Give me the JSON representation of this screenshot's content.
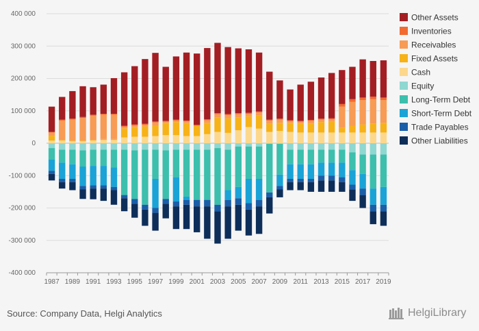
{
  "source_text": "Source: Company Data, Helgi Analytics",
  "logo_text": "HelgiLibrary",
  "chart_data": {
    "type": "bar",
    "stacked": true,
    "title": "",
    "xlabel": "",
    "ylabel": "",
    "ylim": [
      -400000,
      400000
    ],
    "y_ticks": [
      400000,
      300000,
      200000,
      100000,
      0,
      -100000,
      -200000,
      -300000,
      -400000
    ],
    "y_tick_labels": [
      "400 000",
      "300 000",
      "200 000",
      "100 000",
      "0",
      "-100 000",
      "-200 000",
      "-300 000",
      "-400 000"
    ],
    "grid": "horizontal",
    "legend_position": "right",
    "categories": [
      1987,
      1988,
      1989,
      1990,
      1991,
      1992,
      1993,
      1994,
      1995,
      1996,
      1997,
      1998,
      1999,
      2000,
      2001,
      2002,
      2003,
      2004,
      2005,
      2006,
      2007,
      2008,
      2009,
      2010,
      2011,
      2012,
      2013,
      2014,
      2015,
      2016,
      2017,
      2018,
      2019
    ],
    "x_tick_labels": [
      "1987",
      "1989",
      "1991",
      "1993",
      "1995",
      "1997",
      "1999",
      "2001",
      "2003",
      "2005",
      "2007",
      "2009",
      "2011",
      "2013",
      "2015",
      "2017",
      "2019"
    ],
    "assets": [
      {
        "name": "Cash",
        "color": "#fdd88c",
        "values": [
          8000,
          8000,
          6000,
          6000,
          8000,
          10000,
          10000,
          18000,
          20000,
          20000,
          22000,
          25000,
          25000,
          22000,
          22000,
          28000,
          35000,
          32000,
          40000,
          50000,
          45000,
          35000,
          38000,
          35000,
          33000,
          33000,
          33000,
          33000,
          33000,
          33000,
          33000,
          33000,
          33000
        ]
      },
      {
        "name": "Fixed Assets",
        "color": "#f7b218",
        "values": [
          15000,
          2000,
          2000,
          2000,
          2000,
          3000,
          3000,
          28000,
          30000,
          32000,
          32000,
          38000,
          40000,
          40000,
          32000,
          35000,
          45000,
          45000,
          40000,
          33000,
          40000,
          25000,
          25000,
          28000,
          28000,
          28000,
          32000,
          33000,
          15000,
          20000,
          25000,
          28000,
          30000
        ]
      },
      {
        "name": "Receivables",
        "color": "#f89b54",
        "values": [
          10000,
          60000,
          65000,
          70000,
          75000,
          75000,
          75000,
          5000,
          5000,
          5000,
          10000,
          3000,
          5000,
          5000,
          0,
          8000,
          10000,
          10000,
          10000,
          8000,
          10000,
          10000,
          10000,
          5000,
          5000,
          8000,
          8000,
          8000,
          65000,
          75000,
          75000,
          75000,
          70000
        ]
      },
      {
        "name": "Inventories",
        "color": "#f26a30",
        "values": [
          2000,
          3000,
          3000,
          3000,
          3000,
          3000,
          3000,
          3000,
          3000,
          3000,
          3000,
          3000,
          3000,
          3000,
          3000,
          3000,
          3000,
          3000,
          3000,
          3000,
          3000,
          3000,
          3000,
          3000,
          3000,
          3000,
          3000,
          3000,
          8000,
          8000,
          8000,
          8000,
          8000
        ]
      },
      {
        "name": "Other Assets",
        "color": "#a31e23",
        "values": [
          78000,
          70000,
          85000,
          95000,
          85000,
          90000,
          110000,
          165000,
          180000,
          200000,
          212000,
          167000,
          195000,
          210000,
          220000,
          220000,
          217000,
          207000,
          200000,
          196000,
          182000,
          148000,
          118000,
          95000,
          112000,
          118000,
          127000,
          140000,
          105000,
          100000,
          118000,
          110000,
          115000
        ]
      }
    ],
    "equity_band": {
      "name": "Equity",
      "color": "#8fd7d1",
      "values": [
        -15000,
        -20000,
        -20000,
        -22000,
        -20000,
        -20000,
        -20000,
        -20000,
        -22000,
        -20000,
        -20000,
        -22000,
        -20000,
        -20000,
        -20000,
        -20000,
        -15000,
        -20000,
        -10000,
        -10000,
        -10000,
        -2000,
        -2000,
        -20000,
        -20000,
        -20000,
        -20000,
        -20000,
        -20000,
        -28000,
        -35000,
        -35000,
        -35000
      ]
    },
    "liabilities": [
      {
        "name": "Long-Term Debt",
        "color": "#3cbfad",
        "values": [
          -35000,
          -40000,
          -45000,
          -50000,
          -50000,
          -50000,
          -55000,
          -140000,
          -150000,
          -170000,
          -90000,
          -150000,
          -85000,
          -145000,
          -155000,
          -155000,
          -175000,
          -125000,
          -125000,
          -100000,
          -100000,
          -150000,
          -95000,
          -45000,
          -45000,
          -45000,
          -40000,
          -40000,
          -40000,
          -55000,
          -60000,
          -105000,
          -100000
        ]
      },
      {
        "name": "Short-Term Debt",
        "color": "#1aa3d6",
        "values": [
          -35000,
          -50000,
          -45000,
          -60000,
          -60000,
          -60000,
          -60000,
          0,
          0,
          0,
          -90000,
          0,
          -75000,
          -10000,
          0,
          0,
          0,
          -30000,
          -35000,
          -75000,
          -65000,
          0,
          -35000,
          -45000,
          -45000,
          -45000,
          -40000,
          -40000,
          -45000,
          -45000,
          -45000,
          -50000,
          -55000
        ]
      },
      {
        "name": "Trade Payables",
        "color": "#1a5ea8",
        "values": [
          -10000,
          -10000,
          -10000,
          -10000,
          -10000,
          -10000,
          -10000,
          -10000,
          -15000,
          -15000,
          -15000,
          -15000,
          -15000,
          -15000,
          -20000,
          -20000,
          -20000,
          -20000,
          -20000,
          -20000,
          -20000,
          -15000,
          -10000,
          -10000,
          -10000,
          -10000,
          -15000,
          -15000,
          -15000,
          -15000,
          -20000,
          -20000,
          -20000
        ]
      },
      {
        "name": "Other Liabilities",
        "color": "#0e2e5a",
        "values": [
          -20000,
          -20000,
          -25000,
          -30000,
          -33000,
          -38000,
          -45000,
          -40000,
          -43000,
          -50000,
          -55000,
          -45000,
          -70000,
          -75000,
          -80000,
          -100000,
          -100000,
          -100000,
          -80000,
          -80000,
          -85000,
          -50000,
          -25000,
          -25000,
          -25000,
          -30000,
          -35000,
          -35000,
          -30000,
          -35000,
          -40000,
          -40000,
          -45000
        ]
      }
    ],
    "legend_order": [
      "Other Assets",
      "Inventories",
      "Receivables",
      "Fixed Assets",
      "Cash",
      "Equity",
      "Long-Term Debt",
      "Short-Term Debt",
      "Trade Payables",
      "Other Liabilities"
    ]
  }
}
